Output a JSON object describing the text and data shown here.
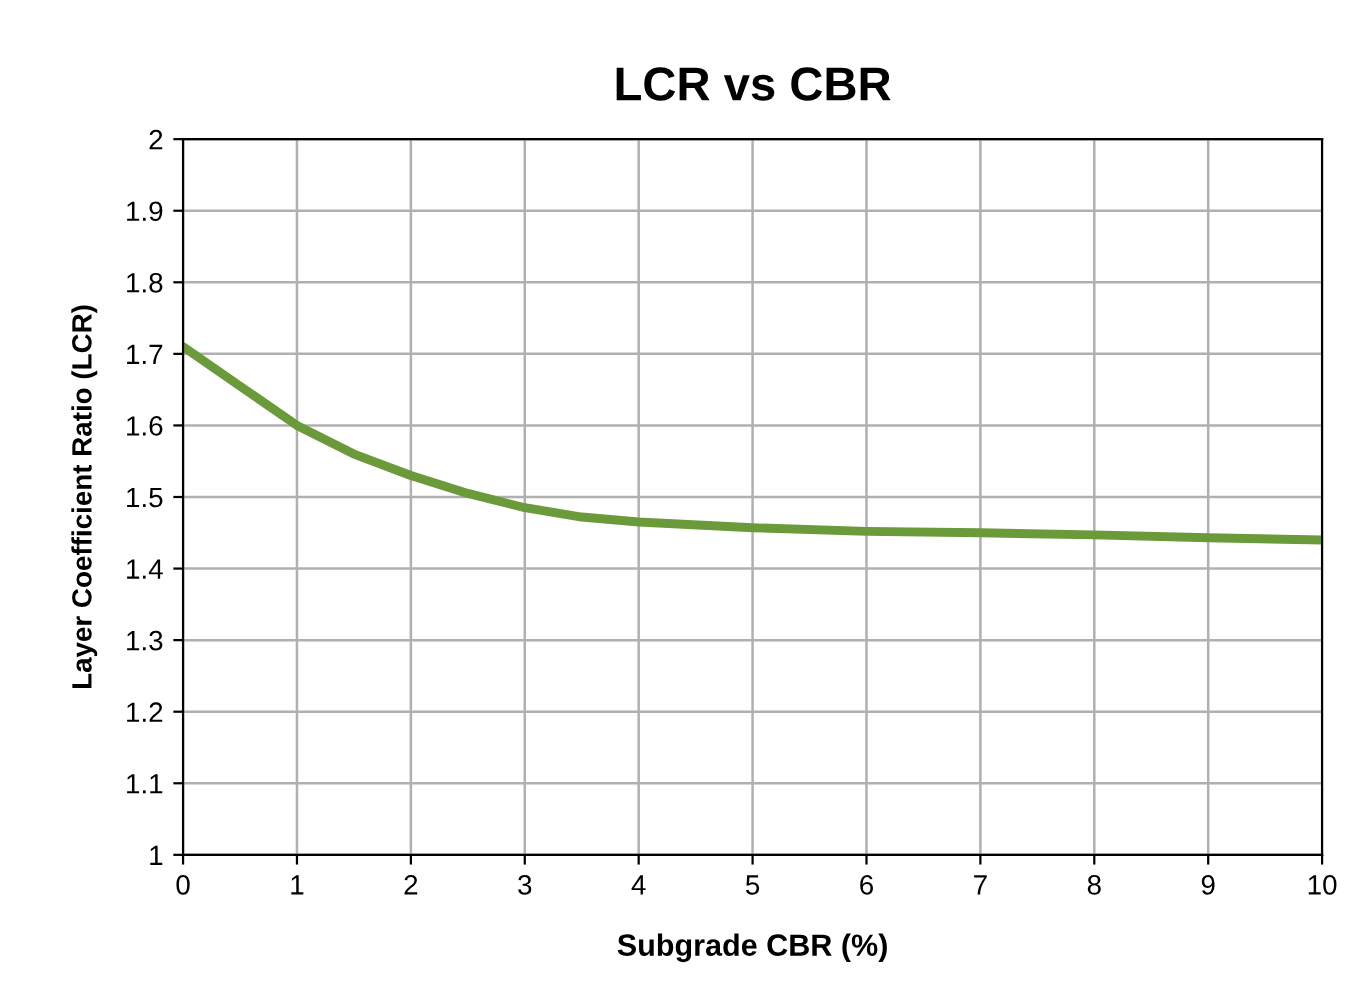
{
  "chart_data": {
    "type": "line",
    "title": "LCR vs CBR",
    "xlabel": "Subgrade CBR (%)",
    "ylabel": "Layer Coefficient Ratio (LCR)",
    "x": [
      0,
      0.5,
      1,
      1.5,
      2,
      2.5,
      3,
      3.5,
      4,
      5,
      6,
      7,
      8,
      9,
      10
    ],
    "series": [
      {
        "color": "#6a9a3a",
        "values": [
          1.71,
          1.655,
          1.6,
          1.56,
          1.53,
          1.505,
          1.485,
          1.472,
          1.465,
          1.457,
          1.452,
          1.45,
          1.447,
          1.443,
          1.44
        ]
      }
    ],
    "xlim": [
      0,
      10
    ],
    "xticks": [
      0,
      1,
      2,
      3,
      4,
      5,
      6,
      7,
      8,
      9,
      10
    ],
    "ylim": [
      1,
      2
    ],
    "yticks": [
      1,
      1.1,
      1.2,
      1.3,
      1.4,
      1.5,
      1.6,
      1.7,
      1.8,
      1.9,
      2
    ],
    "grid": true,
    "marker": "none",
    "line_style": "solid"
  }
}
